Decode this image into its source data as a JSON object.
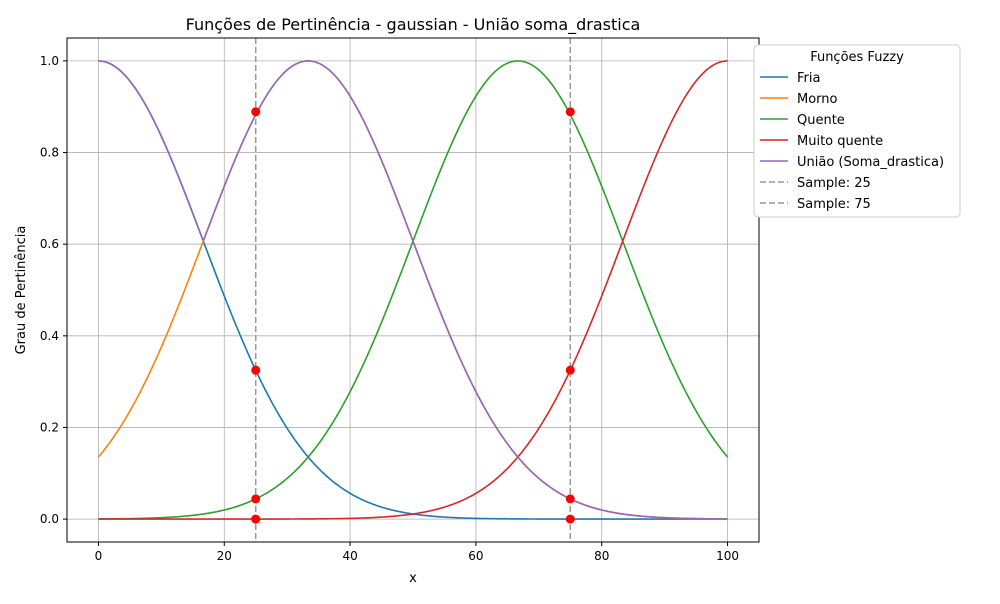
{
  "chart_data": {
    "type": "line",
    "title": "Funções de Pertinência - gaussian - União soma_drastica",
    "xlabel": "x",
    "ylabel": "Grau de Pertinência",
    "xlim": [
      -5,
      105
    ],
    "ylim": [
      -0.05,
      1.05
    ],
    "xticks": [
      0,
      20,
      40,
      60,
      80,
      100
    ],
    "xtick_labels": [
      "0",
      "20",
      "40",
      "60",
      "80",
      "100"
    ],
    "yticks": [
      0.0,
      0.2,
      0.4,
      0.6,
      0.8,
      1.0
    ],
    "ytick_labels": [
      "0.0",
      "0.2",
      "0.4",
      "0.6",
      "0.8",
      "1.0"
    ],
    "grid": true,
    "legend": {
      "title": "Funções Fuzzy",
      "placement": "outside-top-right"
    },
    "series": [
      {
        "name": "Fria",
        "color": "#1f77b4",
        "center": 0,
        "sigma": 16.67
      },
      {
        "name": "Morno",
        "color": "#ff7f0e",
        "center": 33.33,
        "sigma": 16.67
      },
      {
        "name": "Quente",
        "color": "#2ca02c",
        "center": 66.67,
        "sigma": 16.67
      },
      {
        "name": "Muito quente",
        "color": "#d62728",
        "center": 100,
        "sigma": 16.67
      },
      {
        "name": "União (Soma_drastica)",
        "color": "#9467bd",
        "type": "union_of",
        "of": [
          "Fria",
          "Morno"
        ]
      }
    ],
    "samples": [
      {
        "name": "Sample: 25",
        "x": 25,
        "color": "#999999",
        "style": "dashed"
      },
      {
        "name": "Sample: 75",
        "x": 75,
        "color": "#999999",
        "style": "dashed"
      }
    ],
    "sample_points": [
      {
        "x": 25,
        "y": 0.889
      },
      {
        "x": 25,
        "y": 0.325
      },
      {
        "x": 25,
        "y": 0.044
      },
      {
        "x": 25,
        "y": 0.0
      },
      {
        "x": 75,
        "y": 0.889
      },
      {
        "x": 75,
        "y": 0.325
      },
      {
        "x": 75,
        "y": 0.044
      },
      {
        "x": 75,
        "y": 0.0
      }
    ],
    "sample_point_color": "#ff0000"
  }
}
